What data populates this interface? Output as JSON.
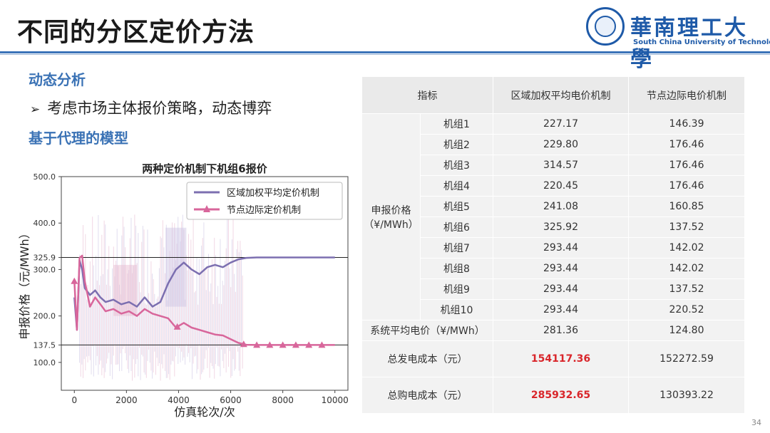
{
  "slide": {
    "title": "不同的分区定价方法",
    "page_number": "34",
    "accent_color": "#3b73b8"
  },
  "logo": {
    "name_cn": "華南理工大學",
    "name_en": "South China University of Technology"
  },
  "content": {
    "section1": "动态分析",
    "bullet": "考虑市场主体报价策略，动态博弈",
    "section2": "基于代理的模型"
  },
  "chart_data": {
    "type": "line",
    "title": "两种定价机制下机组6报价",
    "xlabel": "仿真轮次/次",
    "ylabel": "申报价格（元/MWh）",
    "xlim": [
      -500,
      10500
    ],
    "ylim": [
      40,
      500
    ],
    "xticks": [
      0,
      2000,
      4000,
      6000,
      8000,
      10000
    ],
    "yticks": [
      100.0,
      137.5,
      200.0,
      300.0,
      325.9,
      400.0,
      500.0
    ],
    "reference_lines": [
      325.9,
      137.5
    ],
    "legend_position": "top-right",
    "series": [
      {
        "name": "区域加权平均定价机制",
        "color": "#7c6fb0",
        "x": [
          0,
          100,
          200,
          300,
          400,
          600,
          800,
          1000,
          1200,
          1500,
          1800,
          2100,
          2400,
          2700,
          3000,
          3300,
          3600,
          3900,
          4200,
          4500,
          4800,
          5100,
          5400,
          5700,
          6000,
          6300,
          6600,
          7000,
          7500,
          8000,
          9000,
          10000
        ],
        "y": [
          240,
          170,
          320,
          300,
          260,
          245,
          255,
          240,
          230,
          235,
          225,
          230,
          220,
          240,
          220,
          230,
          270,
          300,
          315,
          300,
          290,
          305,
          310,
          305,
          315,
          322,
          325,
          325.9,
          325.9,
          325.9,
          325.9,
          325.9
        ]
      },
      {
        "name": "节点边际定价机制",
        "color": "#d8669b",
        "marker": "triangle",
        "x": [
          0,
          100,
          200,
          300,
          400,
          600,
          800,
          1000,
          1200,
          1500,
          1800,
          2100,
          2400,
          2700,
          3000,
          3300,
          3600,
          3900,
          4200,
          4500,
          4800,
          5100,
          5400,
          5700,
          6000,
          6300,
          6600,
          7000,
          7500,
          8000,
          8500,
          9000,
          9500,
          10000
        ],
        "y": [
          275,
          170,
          325,
          330,
          275,
          220,
          240,
          225,
          210,
          215,
          205,
          210,
          200,
          215,
          205,
          200,
          195,
          175,
          185,
          175,
          170,
          165,
          160,
          158,
          150,
          142,
          138,
          137.5,
          137.5,
          137.5,
          137.5,
          137.5,
          137.5,
          137.5
        ],
        "marker_x": [
          0,
          3950,
          6500,
          7000,
          7500,
          8000,
          8500,
          9000,
          9500
        ]
      }
    ]
  },
  "table": {
    "headers": [
      "指标",
      "区域加权平均电价机制",
      "节点边际电价机制"
    ],
    "group_label": "申报价格",
    "group_unit": "（¥/MWh）",
    "rows": [
      {
        "unit": "机组1",
        "zonal": "227.17",
        "nodal": "146.39"
      },
      {
        "unit": "机组2",
        "zonal": "229.80",
        "nodal": "176.46"
      },
      {
        "unit": "机组3",
        "zonal": "314.57",
        "nodal": "176.46"
      },
      {
        "unit": "机组4",
        "zonal": "220.45",
        "nodal": "176.46"
      },
      {
        "unit": "机组5",
        "zonal": "241.08",
        "nodal": "160.85"
      },
      {
        "unit": "机组6",
        "zonal": "325.92",
        "nodal": "137.52"
      },
      {
        "unit": "机组7",
        "zonal": "293.44",
        "nodal": "142.02"
      },
      {
        "unit": "机组8",
        "zonal": "293.44",
        "nodal": "142.02"
      },
      {
        "unit": "机组9",
        "zonal": "293.44",
        "nodal": "137.52"
      },
      {
        "unit": "机组10",
        "zonal": "293.44",
        "nodal": "220.52"
      }
    ],
    "avg_price": {
      "label": "系统平均电价（¥/MWh）",
      "zonal": "281.36",
      "nodal": "124.80"
    },
    "gen_cost": {
      "label": "总发电成本（元）",
      "zonal": "154117.36",
      "nodal": "152272.59"
    },
    "buy_cost": {
      "label": "总购电成本（元）",
      "zonal": "285932.65",
      "nodal": "130393.22"
    }
  }
}
